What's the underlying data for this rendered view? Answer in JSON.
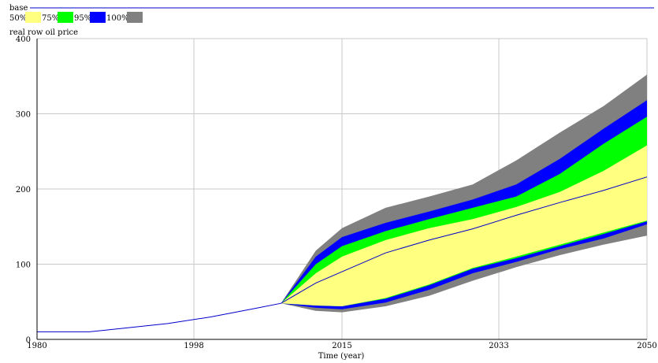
{
  "chart_data": {
    "type": "area",
    "legend": {
      "run_name": "base",
      "run_line_color": "#0000cc",
      "bands": [
        {
          "label": "50%",
          "color": "#ffff80"
        },
        {
          "label": "75%",
          "color": "#00ff00"
        },
        {
          "label": "95%",
          "color": "#0000ff"
        },
        {
          "label": "100%",
          "color": "#808080"
        }
      ],
      "placement": "top-left"
    },
    "ylabel": "real row oil price",
    "xlabel": "Time (year)",
    "xlim": [
      1980,
      2050
    ],
    "ylim": [
      0,
      400
    ],
    "xticks": [
      1980,
      1998,
      2015,
      2033,
      2050
    ],
    "yticks": [
      0,
      100,
      200,
      300,
      400
    ],
    "grid": true,
    "x": [
      1980,
      1986,
      1990,
      1995,
      2000,
      2005,
      2008,
      2012,
      2015,
      2020,
      2025,
      2030,
      2035,
      2040,
      2045,
      2050
    ],
    "base": [
      10,
      10,
      15,
      21,
      30,
      41,
      48,
      75,
      90,
      115,
      132,
      147,
      165,
      182,
      198,
      216
    ],
    "bands": {
      "p100_low": [
        10,
        10,
        15,
        21,
        30,
        41,
        48,
        38,
        36,
        44,
        58,
        78,
        96,
        112,
        126,
        138
      ],
      "p95_low": [
        10,
        10,
        15,
        21,
        30,
        41,
        48,
        42,
        40,
        49,
        66,
        88,
        103,
        120,
        134,
        153
      ],
      "p75_low": [
        10,
        10,
        15,
        21,
        30,
        41,
        48,
        45,
        44,
        54,
        72,
        94,
        108,
        124,
        140,
        157
      ],
      "p50_low": [
        10,
        10,
        15,
        21,
        30,
        41,
        48,
        45,
        44,
        55,
        73,
        95,
        110,
        126,
        142,
        158
      ],
      "p50_high": [
        10,
        10,
        15,
        21,
        30,
        41,
        48,
        88,
        110,
        132,
        148,
        160,
        176,
        196,
        224,
        258
      ],
      "p75_high": [
        10,
        10,
        15,
        21,
        30,
        41,
        48,
        100,
        124,
        144,
        160,
        175,
        190,
        220,
        260,
        296
      ],
      "p95_high": [
        10,
        10,
        15,
        21,
        30,
        41,
        48,
        110,
        136,
        155,
        170,
        186,
        206,
        240,
        280,
        318
      ],
      "p100_high": [
        10,
        10,
        15,
        21,
        30,
        41,
        48,
        118,
        148,
        175,
        190,
        206,
        238,
        275,
        310,
        352
      ]
    }
  }
}
